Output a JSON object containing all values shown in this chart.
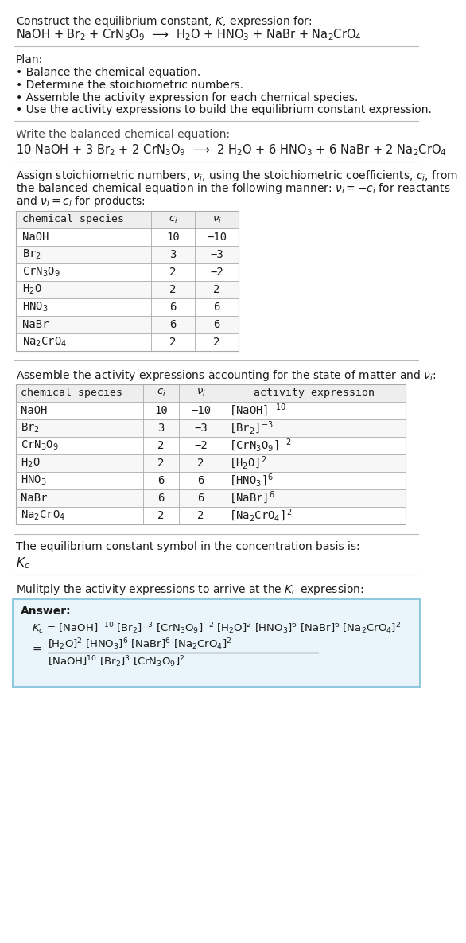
{
  "title_line1": "Construct the equilibrium constant, $K$, expression for:",
  "title_line2": "NaOH + Br$_2$ + CrN$_3$O$_9$  ⟶  H$_2$O + HNO$_3$ + NaBr + Na$_2$CrO$_4$",
  "plan_header": "Plan:",
  "plan_items": [
    "Balance the chemical equation.",
    "Determine the stoichiometric numbers.",
    "Assemble the activity expression for each chemical species.",
    "Use the activity expressions to build the equilibrium constant expression."
  ],
  "balanced_header": "Write the balanced chemical equation:",
  "balanced_eq": "10 NaOH + 3 Br$_2$ + 2 CrN$_3$O$_9$  ⟶  2 H$_2$O + 6 HNO$_3$ + 6 NaBr + 2 Na$_2$CrO$_4$",
  "stoich_lines": [
    "Assign stoichiometric numbers, $\\nu_i$, using the stoichiometric coefficients, $c_i$, from",
    "the balanced chemical equation in the following manner: $\\nu_i = -c_i$ for reactants",
    "and $\\nu_i = c_i$ for products:"
  ],
  "table1_cols": [
    "chemical species",
    "$c_i$",
    "$\\nu_i$"
  ],
  "table1_rows": [
    [
      "NaOH",
      "10",
      "−10"
    ],
    [
      "Br$_2$",
      "3",
      "−3"
    ],
    [
      "CrN$_3$O$_9$",
      "2",
      "−2"
    ],
    [
      "H$_2$O",
      "2",
      "2"
    ],
    [
      "HNO$_3$",
      "6",
      "6"
    ],
    [
      "NaBr",
      "6",
      "6"
    ],
    [
      "Na$_2$CrO$_4$",
      "2",
      "2"
    ]
  ],
  "activity_header": "Assemble the activity expressions accounting for the state of matter and $\\nu_i$:",
  "table2_cols": [
    "chemical species",
    "$c_i$",
    "$\\nu_i$",
    "activity expression"
  ],
  "table2_rows": [
    [
      "NaOH",
      "10",
      "−10",
      "[NaOH]$^{-10}$"
    ],
    [
      "Br$_2$",
      "3",
      "−3",
      "[Br$_2$]$^{-3}$"
    ],
    [
      "CrN$_3$O$_9$",
      "2",
      "−2",
      "[CrN$_3$O$_9$]$^{-2}$"
    ],
    [
      "H$_2$O",
      "2",
      "2",
      "[H$_2$O]$^2$"
    ],
    [
      "HNO$_3$",
      "6",
      "6",
      "[HNO$_3$]$^6$"
    ],
    [
      "NaBr",
      "6",
      "6",
      "[NaBr]$^6$"
    ],
    [
      "Na$_2$CrO$_4$",
      "2",
      "2",
      "[Na$_2$CrO$_4$]$^2$"
    ]
  ],
  "kc_header": "The equilibrium constant symbol in the concentration basis is:",
  "kc_symbol": "$K_c$",
  "multiply_header": "Mulitply the activity expressions to arrive at the $K_c$ expression:",
  "ans_label": "Answer:",
  "ans_line1": "$K_c$ = [NaOH]$^{-10}$ [Br$_2$]$^{-3}$ [CrN$_3$O$_9$]$^{-2}$ [H$_2$O]$^2$ [HNO$_3$]$^6$ [NaBr]$^6$ [Na$_2$CrO$_4$]$^2$",
  "ans_num": "[H$_2$O]$^2$ [HNO$_3$]$^6$ [NaBr]$^6$ [Na$_2$CrO$_4$]$^2$",
  "ans_den": "[NaOH]$^{10}$ [Br$_2$]$^3$ [CrN$_3$O$_9$]$^2$",
  "bg_color": "#ffffff",
  "sep_color": "#bbbbbb",
  "table_hdr_bg": "#eeeeee",
  "ans_box_bg": "#eaf4fb",
  "ans_box_edge": "#90c8e0"
}
